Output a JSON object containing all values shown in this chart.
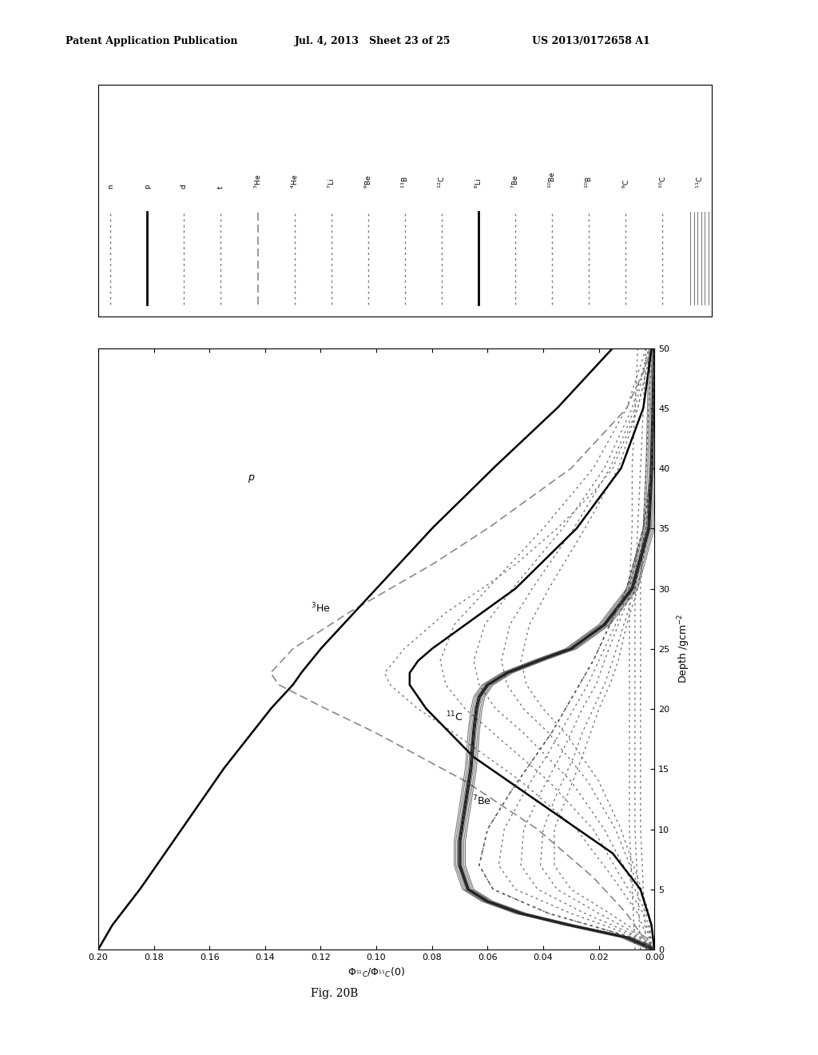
{
  "header_left": "Patent Application Publication",
  "header_mid": "Jul. 4, 2013   Sheet 23 of 25",
  "header_right": "US 2013/0172658 A1",
  "fig_label": "Fig. 20B",
  "background_color": "#ffffff"
}
